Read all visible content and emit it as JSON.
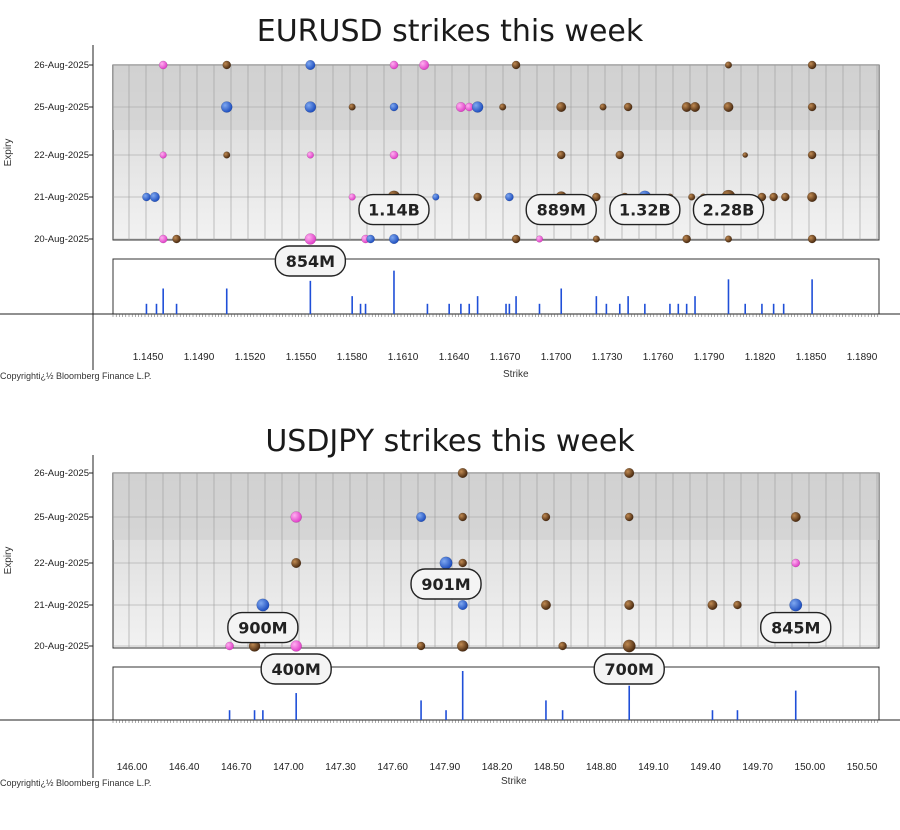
{
  "chart_data": [
    {
      "type": "scatter",
      "title": "EURUSD strikes this week",
      "xlabel": "Strike",
      "ylabel": "Expiry",
      "copyright": "Copyrighti¿½ Bloomberg Finance L.P.",
      "xlim": [
        1.1432,
        1.189
      ],
      "x_ticks": [
        "1.1450",
        "1.1490",
        "1.1520",
        "1.1550",
        "1.1580",
        "1.1610",
        "1.1640",
        "1.1670",
        "1.1700",
        "1.1730",
        "1.1760",
        "1.1790",
        "1.1820",
        "1.1850",
        "1.1890"
      ],
      "y_ticks": [
        "20-Aug-2025",
        "21-Aug-2025",
        "22-Aug-2025",
        "25-Aug-2025",
        "26-Aug-2025"
      ],
      "points": [
        {
          "x": 1.1462,
          "d": 4,
          "s": 5,
          "c": "pink"
        },
        {
          "x": 1.15,
          "d": 4,
          "s": 5,
          "c": "brown"
        },
        {
          "x": 1.155,
          "d": 4,
          "s": 6,
          "c": "blue"
        },
        {
          "x": 1.16,
          "d": 4,
          "s": 5,
          "c": "pink"
        },
        {
          "x": 1.1618,
          "d": 4,
          "s": 6,
          "c": "pink"
        },
        {
          "x": 1.1673,
          "d": 4,
          "s": 5,
          "c": "brown"
        },
        {
          "x": 1.18,
          "d": 4,
          "s": 4,
          "c": "brown"
        },
        {
          "x": 1.185,
          "d": 4,
          "s": 5,
          "c": "brown"
        },
        {
          "x": 1.15,
          "d": 3,
          "s": 7,
          "c": "blue"
        },
        {
          "x": 1.155,
          "d": 3,
          "s": 7,
          "c": "blue"
        },
        {
          "x": 1.1575,
          "d": 3,
          "s": 4,
          "c": "brown"
        },
        {
          "x": 1.16,
          "d": 3,
          "s": 5,
          "c": "blue"
        },
        {
          "x": 1.164,
          "d": 3,
          "s": 6,
          "c": "pink"
        },
        {
          "x": 1.1645,
          "d": 3,
          "s": 5,
          "c": "pink"
        },
        {
          "x": 1.165,
          "d": 3,
          "s": 7,
          "c": "blue"
        },
        {
          "x": 1.1665,
          "d": 3,
          "s": 4,
          "c": "brown"
        },
        {
          "x": 1.17,
          "d": 3,
          "s": 6,
          "c": "brown"
        },
        {
          "x": 1.1725,
          "d": 3,
          "s": 4,
          "c": "brown"
        },
        {
          "x": 1.174,
          "d": 3,
          "s": 5,
          "c": "brown"
        },
        {
          "x": 1.1775,
          "d": 3,
          "s": 6,
          "c": "brown"
        },
        {
          "x": 1.178,
          "d": 3,
          "s": 6,
          "c": "brown"
        },
        {
          "x": 1.18,
          "d": 3,
          "s": 6,
          "c": "brown"
        },
        {
          "x": 1.185,
          "d": 3,
          "s": 5,
          "c": "brown"
        },
        {
          "x": 1.1462,
          "d": 2,
          "s": 4,
          "c": "pink"
        },
        {
          "x": 1.15,
          "d": 2,
          "s": 4,
          "c": "brown"
        },
        {
          "x": 1.155,
          "d": 2,
          "s": 4,
          "c": "pink"
        },
        {
          "x": 1.16,
          "d": 2,
          "s": 5,
          "c": "pink"
        },
        {
          "x": 1.17,
          "d": 2,
          "s": 5,
          "c": "brown"
        },
        {
          "x": 1.1735,
          "d": 2,
          "s": 5,
          "c": "brown"
        },
        {
          "x": 1.181,
          "d": 2,
          "s": 3,
          "c": "brown"
        },
        {
          "x": 1.185,
          "d": 2,
          "s": 5,
          "c": "brown"
        },
        {
          "x": 1.1452,
          "d": 1,
          "s": 5,
          "c": "blue"
        },
        {
          "x": 1.1457,
          "d": 1,
          "s": 6,
          "c": "blue"
        },
        {
          "x": 1.1575,
          "d": 1,
          "s": 4,
          "c": "pink"
        },
        {
          "x": 1.16,
          "d": 1,
          "s": 8,
          "c": "brown"
        },
        {
          "x": 1.1625,
          "d": 1,
          "s": 4,
          "c": "blue"
        },
        {
          "x": 1.165,
          "d": 1,
          "s": 5,
          "c": "brown"
        },
        {
          "x": 1.1669,
          "d": 1,
          "s": 5,
          "c": "blue"
        },
        {
          "x": 1.17,
          "d": 1,
          "s": 7,
          "c": "brown"
        },
        {
          "x": 1.1721,
          "d": 1,
          "s": 5,
          "c": "brown"
        },
        {
          "x": 1.1738,
          "d": 1,
          "s": 5,
          "c": "brown"
        },
        {
          "x": 1.175,
          "d": 1,
          "s": 8,
          "c": "blue"
        },
        {
          "x": 1.1765,
          "d": 1,
          "s": 4,
          "c": "brown"
        },
        {
          "x": 1.1778,
          "d": 1,
          "s": 4,
          "c": "brown"
        },
        {
          "x": 1.1785,
          "d": 1,
          "s": 4,
          "c": "brown"
        },
        {
          "x": 1.18,
          "d": 1,
          "s": 9,
          "c": "brown"
        },
        {
          "x": 1.182,
          "d": 1,
          "s": 5,
          "c": "brown"
        },
        {
          "x": 1.1827,
          "d": 1,
          "s": 5,
          "c": "brown"
        },
        {
          "x": 1.1834,
          "d": 1,
          "s": 5,
          "c": "brown"
        },
        {
          "x": 1.185,
          "d": 1,
          "s": 6,
          "c": "brown"
        },
        {
          "x": 1.1462,
          "d": 0,
          "s": 5,
          "c": "pink"
        },
        {
          "x": 1.147,
          "d": 0,
          "s": 5,
          "c": "brown"
        },
        {
          "x": 1.155,
          "d": 0,
          "s": 7,
          "c": "pink"
        },
        {
          "x": 1.1583,
          "d": 0,
          "s": 5,
          "c": "pink"
        },
        {
          "x": 1.1586,
          "d": 0,
          "s": 5,
          "c": "blue"
        },
        {
          "x": 1.16,
          "d": 0,
          "s": 6,
          "c": "blue"
        },
        {
          "x": 1.1673,
          "d": 0,
          "s": 5,
          "c": "brown"
        },
        {
          "x": 1.1687,
          "d": 0,
          "s": 4,
          "c": "pink"
        },
        {
          "x": 1.1721,
          "d": 0,
          "s": 4,
          "c": "brown"
        },
        {
          "x": 1.1775,
          "d": 0,
          "s": 5,
          "c": "brown"
        },
        {
          "x": 1.18,
          "d": 0,
          "s": 4,
          "c": "brown"
        },
        {
          "x": 1.185,
          "d": 0,
          "s": 5,
          "c": "brown"
        }
      ],
      "volume_bars": [
        {
          "x": 1.1452,
          "v": 0.2
        },
        {
          "x": 1.1458,
          "v": 0.2
        },
        {
          "x": 1.1462,
          "v": 0.5
        },
        {
          "x": 1.147,
          "v": 0.2
        },
        {
          "x": 1.15,
          "v": 0.5
        },
        {
          "x": 1.155,
          "v": 0.65
        },
        {
          "x": 1.1575,
          "v": 0.35
        },
        {
          "x": 1.158,
          "v": 0.2
        },
        {
          "x": 1.1583,
          "v": 0.2
        },
        {
          "x": 1.16,
          "v": 0.85
        },
        {
          "x": 1.162,
          "v": 0.2
        },
        {
          "x": 1.1633,
          "v": 0.2
        },
        {
          "x": 1.164,
          "v": 0.2
        },
        {
          "x": 1.1645,
          "v": 0.2
        },
        {
          "x": 1.165,
          "v": 0.35
        },
        {
          "x": 1.1667,
          "v": 0.2
        },
        {
          "x": 1.1669,
          "v": 0.2
        },
        {
          "x": 1.1673,
          "v": 0.35
        },
        {
          "x": 1.1687,
          "v": 0.2
        },
        {
          "x": 1.17,
          "v": 0.5
        },
        {
          "x": 1.1721,
          "v": 0.35
        },
        {
          "x": 1.1727,
          "v": 0.2
        },
        {
          "x": 1.1735,
          "v": 0.2
        },
        {
          "x": 1.174,
          "v": 0.35
        },
        {
          "x": 1.175,
          "v": 0.2
        },
        {
          "x": 1.1765,
          "v": 0.2
        },
        {
          "x": 1.177,
          "v": 0.2
        },
        {
          "x": 1.1775,
          "v": 0.2
        },
        {
          "x": 1.178,
          "v": 0.35
        },
        {
          "x": 1.18,
          "v": 0.68
        },
        {
          "x": 1.181,
          "v": 0.2
        },
        {
          "x": 1.182,
          "v": 0.2
        },
        {
          "x": 1.1827,
          "v": 0.2
        },
        {
          "x": 1.1833,
          "v": 0.2
        },
        {
          "x": 1.185,
          "v": 0.68
        }
      ],
      "callouts": [
        {
          "label": "1.14B",
          "x": 1.16,
          "d": 0.7
        },
        {
          "label": "889M",
          "x": 1.17,
          "d": 0.7
        },
        {
          "label": "1.32B",
          "x": 1.175,
          "d": 0.7
        },
        {
          "label": "2.28B",
          "x": 1.18,
          "d": 0.7
        },
        {
          "label": "854M",
          "x": 1.155,
          "d": -0.6
        }
      ]
    },
    {
      "type": "scatter",
      "title": "USDJPY strikes this week",
      "xlabel": "Strike",
      "ylabel": "Expiry",
      "copyright": "Copyrighti¿½ Bloomberg Finance L.P.",
      "xlim": [
        145.9,
        150.5
      ],
      "x_ticks": [
        "146.00",
        "146.40",
        "146.70",
        "147.00",
        "147.30",
        "147.60",
        "147.90",
        "148.20",
        "148.50",
        "148.80",
        "149.10",
        "149.40",
        "149.70",
        "150.00",
        "150.50"
      ],
      "y_ticks": [
        "20-Aug-2025",
        "21-Aug-2025",
        "22-Aug-2025",
        "25-Aug-2025",
        "26-Aug-2025"
      ],
      "points": [
        {
          "x": 148.0,
          "d": 4,
          "s": 6,
          "c": "brown"
        },
        {
          "x": 149.0,
          "d": 4,
          "s": 6,
          "c": "brown"
        },
        {
          "x": 147.0,
          "d": 3,
          "s": 7,
          "c": "pink"
        },
        {
          "x": 147.75,
          "d": 3,
          "s": 6,
          "c": "blue"
        },
        {
          "x": 148.0,
          "d": 3,
          "s": 5,
          "c": "brown"
        },
        {
          "x": 148.5,
          "d": 3,
          "s": 5,
          "c": "brown"
        },
        {
          "x": 149.0,
          "d": 3,
          "s": 5,
          "c": "brown"
        },
        {
          "x": 150.0,
          "d": 3,
          "s": 6,
          "c": "brown"
        },
        {
          "x": 147.0,
          "d": 2,
          "s": 6,
          "c": "brown"
        },
        {
          "x": 147.9,
          "d": 2,
          "s": 8,
          "c": "blue"
        },
        {
          "x": 148.0,
          "d": 2,
          "s": 5,
          "c": "brown"
        },
        {
          "x": 150.0,
          "d": 2,
          "s": 5,
          "c": "pink"
        },
        {
          "x": 146.8,
          "d": 1,
          "s": 8,
          "c": "blue"
        },
        {
          "x": 148.0,
          "d": 1,
          "s": 6,
          "c": "blue"
        },
        {
          "x": 148.5,
          "d": 1,
          "s": 6,
          "c": "brown"
        },
        {
          "x": 149.0,
          "d": 1,
          "s": 6,
          "c": "brown"
        },
        {
          "x": 149.5,
          "d": 1,
          "s": 6,
          "c": "brown"
        },
        {
          "x": 149.65,
          "d": 1,
          "s": 5,
          "c": "brown"
        },
        {
          "x": 150.0,
          "d": 1,
          "s": 8,
          "c": "blue"
        },
        {
          "x": 146.6,
          "d": 0,
          "s": 5,
          "c": "pink"
        },
        {
          "x": 146.75,
          "d": 0,
          "s": 7,
          "c": "brown"
        },
        {
          "x": 147.0,
          "d": 0,
          "s": 7,
          "c": "pink"
        },
        {
          "x": 147.75,
          "d": 0,
          "s": 5,
          "c": "brown"
        },
        {
          "x": 148.0,
          "d": 0,
          "s": 7,
          "c": "brown"
        },
        {
          "x": 148.6,
          "d": 0,
          "s": 5,
          "c": "brown"
        },
        {
          "x": 149.0,
          "d": 0,
          "s": 8,
          "c": "brown"
        }
      ],
      "volume_bars": [
        {
          "x": 146.6,
          "v": 0.2
        },
        {
          "x": 146.75,
          "v": 0.2
        },
        {
          "x": 146.8,
          "v": 0.2
        },
        {
          "x": 147.0,
          "v": 0.55
        },
        {
          "x": 147.75,
          "v": 0.4
        },
        {
          "x": 147.9,
          "v": 0.2
        },
        {
          "x": 148.0,
          "v": 1.0
        },
        {
          "x": 148.5,
          "v": 0.4
        },
        {
          "x": 148.6,
          "v": 0.2
        },
        {
          "x": 149.0,
          "v": 0.7
        },
        {
          "x": 149.5,
          "v": 0.2
        },
        {
          "x": 149.65,
          "v": 0.2
        },
        {
          "x": 150.0,
          "v": 0.6
        }
      ],
      "callouts": [
        {
          "label": "901M",
          "x": 147.9,
          "d": 1.5
        },
        {
          "label": "900M",
          "x": 146.8,
          "d": 0.45
        },
        {
          "label": "845M",
          "x": 150.0,
          "d": 0.45
        },
        {
          "label": "400M",
          "x": 147.0,
          "d": -0.55
        },
        {
          "label": "700M",
          "x": 149.0,
          "d": -0.55
        }
      ]
    }
  ]
}
